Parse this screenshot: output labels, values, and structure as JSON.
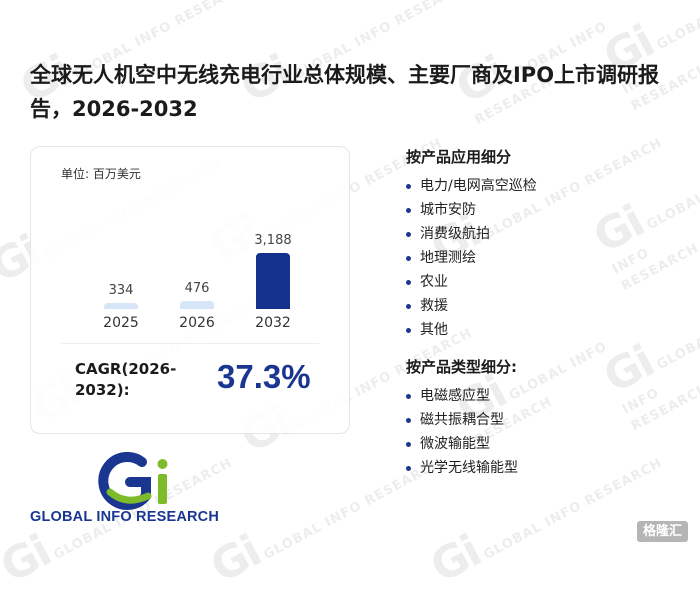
{
  "report": {
    "title": "全球无人机空中无线充电行业总体规模、主要厂商及IPO上市调研报告，2026-2032"
  },
  "card": {
    "unit_label": "单位: 百万美元",
    "cagr_label": "CAGR(2026-2032):",
    "cagr_value": "37.3%"
  },
  "chart_data": {
    "type": "bar",
    "categories": [
      "2025",
      "2026",
      "2032"
    ],
    "values": [
      334,
      476,
      3188
    ],
    "value_labels": [
      "334",
      "476",
      "3,188"
    ],
    "ylabel": "百万美元",
    "colors": [
      "#d6e6f8",
      "#d6e6f8",
      "#14318e"
    ]
  },
  "segments": {
    "application_title": "按产品应用细分",
    "applications": [
      "电力/电网高空巡检",
      "城市安防",
      "消费级航拍",
      "地理测绘",
      "农业",
      "救援",
      "其他"
    ],
    "type_title": "按产品类型细分:",
    "types": [
      "电磁感应型",
      "磁共振耦合型",
      "微波输能型",
      "光学无线输能型"
    ]
  },
  "branding": {
    "logo_text": "GLOBAL INFO RESEARCH",
    "watermark_text": "GLOBAL INFO RESEARCH",
    "corner_badge": "格隆汇"
  }
}
